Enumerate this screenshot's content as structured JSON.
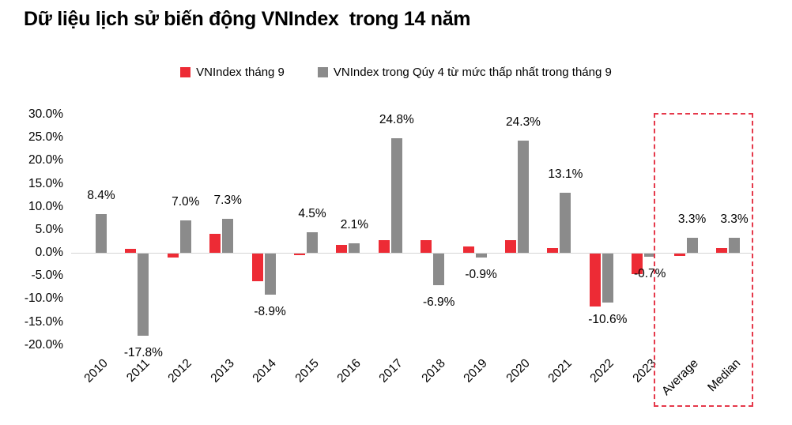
{
  "title": "Dữ liệu lịch sử biến động VNIndex  trong 14 năm",
  "legend": [
    {
      "label": "VNIndex tháng 9",
      "color": "#ed2b35"
    },
    {
      "label": "VNIndex trong Qúy 4 từ mức thấp nhất trong tháng 9",
      "color": "#8b8b8b"
    }
  ],
  "chart_data": {
    "type": "bar",
    "title": "Dữ liệu lịch sử biến động VNIndex  trong 14 năm",
    "categories": [
      "2010",
      "2011",
      "2012",
      "2013",
      "2014",
      "2015",
      "2016",
      "2017",
      "2018",
      "2019",
      "2020",
      "2021",
      "2022",
      "2023",
      "Average",
      "Median"
    ],
    "series": [
      {
        "name": "VNIndex tháng 9",
        "color": "#ed2b35",
        "values": [
          0,
          0.9,
          -0.9,
          4.2,
          -6.0,
          -0.4,
          1.8,
          2.8,
          2.8,
          1.3,
          2.7,
          1.0,
          -11.5,
          -4.5,
          -0.5,
          1.0
        ],
        "data_labels": null
      },
      {
        "name": "VNIndex trong Qúy 4 từ mức thấp nhất trong tháng 9",
        "color": "#8b8b8b",
        "values": [
          8.4,
          -17.8,
          7.0,
          7.3,
          -8.9,
          4.5,
          2.1,
          24.8,
          -6.9,
          -0.9,
          24.3,
          13.1,
          -10.6,
          -0.7,
          3.3,
          3.3
        ],
        "data_labels": [
          "8.4%",
          "-17.8%",
          "7.0%",
          "7.3%",
          "-8.9%",
          "4.5%",
          "2.1%",
          "24.8%",
          "-6.9%",
          "-0.9%",
          "24.3%",
          "13.1%",
          "-10.6%",
          "-0.7%",
          "3.3%",
          "3.3%"
        ]
      }
    ],
    "ylim": [
      -20,
      30
    ],
    "ytick_step": 5,
    "ytick_labels": [
      "30.0%",
      "25.0%",
      "20.0%",
      "15.0%",
      "10.0%",
      "5.0%",
      "0.0%",
      "-5.0%",
      "-10.0%",
      "-15.0%",
      "-20.0%"
    ],
    "grid": false,
    "legend_position": "top",
    "highlight": {
      "categories": [
        "Average",
        "Median"
      ],
      "border_color": "#e5394b",
      "border_style": "dashed"
    },
    "axis_line_color": "#d6d6d6"
  }
}
